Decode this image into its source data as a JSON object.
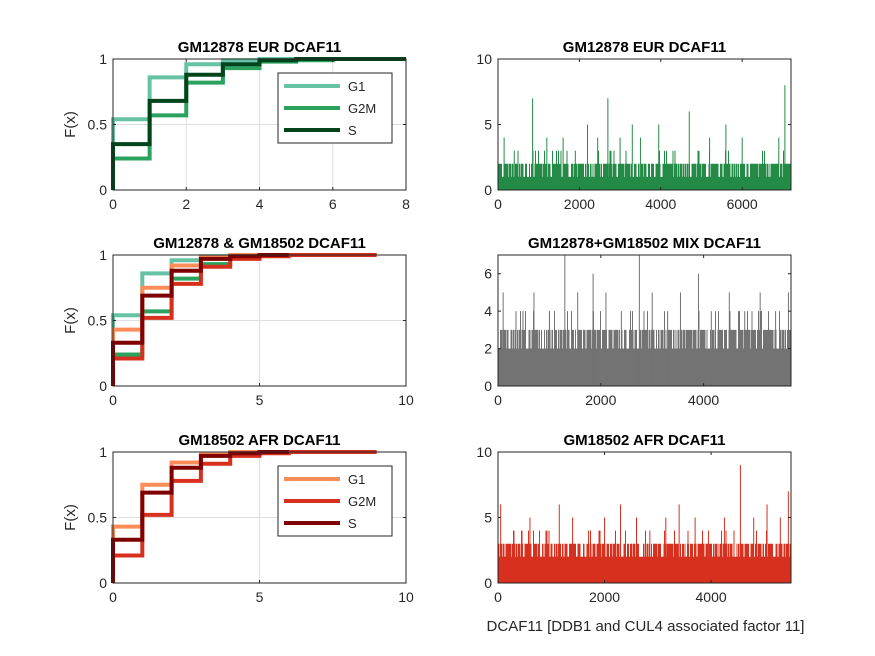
{
  "chart_data": [
    {
      "id": "p1",
      "type": "line",
      "subtype": "ecdf-stairs",
      "title": "GM12878 EUR DCAF11",
      "ylabel": "F(x)",
      "xlabel": "",
      "xlim": [
        0,
        8
      ],
      "ylim": [
        0,
        1
      ],
      "xticks": [
        "0",
        "2",
        "4",
        "6",
        "8"
      ],
      "yticks": [
        "0",
        "0.5",
        "1"
      ],
      "grid": true,
      "legend": "top-right",
      "series": [
        {
          "name": "G1",
          "color": "#66c2a4",
          "x": [
            0,
            1,
            2,
            3,
            4,
            5
          ],
          "y": [
            0.54,
            0.86,
            0.96,
            0.99,
            1.0,
            1.0
          ]
        },
        {
          "name": "G2M",
          "color": "#2ca25f",
          "x": [
            0,
            1,
            2,
            3,
            4,
            5,
            6,
            7
          ],
          "y": [
            0.24,
            0.57,
            0.82,
            0.93,
            0.98,
            0.99,
            1.0,
            1.0
          ]
        },
        {
          "name": "S",
          "color": "#00441b",
          "x": [
            0,
            1,
            2,
            3,
            4,
            5,
            6,
            8
          ],
          "y": [
            0.35,
            0.68,
            0.88,
            0.96,
            0.99,
            1.0,
            1.0,
            1.0
          ]
        }
      ]
    },
    {
      "id": "p2",
      "type": "bar",
      "subtype": "per-cell-counts",
      "title": "GM12878 EUR DCAF11",
      "xlabel": "",
      "ylabel": "",
      "xlim": [
        0,
        7200
      ],
      "ylim": [
        0,
        10
      ],
      "xticks": [
        "0",
        "2000",
        "4000",
        "6000"
      ],
      "yticks": [
        "0",
        "5",
        "10"
      ],
      "grid": false,
      "color": "#238b45",
      "n_cells": 7200,
      "base_max": 2,
      "peaks": [
        {
          "x": 150,
          "y": 4
        },
        {
          "x": 400,
          "y": 3
        },
        {
          "x": 850,
          "y": 7
        },
        {
          "x": 1200,
          "y": 4
        },
        {
          "x": 1600,
          "y": 4
        },
        {
          "x": 1900,
          "y": 3
        },
        {
          "x": 2200,
          "y": 5
        },
        {
          "x": 2450,
          "y": 4
        },
        {
          "x": 2700,
          "y": 7
        },
        {
          "x": 3000,
          "y": 4
        },
        {
          "x": 3300,
          "y": 5
        },
        {
          "x": 3500,
          "y": 4
        },
        {
          "x": 3950,
          "y": 5
        },
        {
          "x": 4300,
          "y": 3
        },
        {
          "x": 4700,
          "y": 6
        },
        {
          "x": 5200,
          "y": 4
        },
        {
          "x": 5600,
          "y": 5
        },
        {
          "x": 6000,
          "y": 4
        },
        {
          "x": 6500,
          "y": 3
        },
        {
          "x": 6900,
          "y": 4
        },
        {
          "x": 7050,
          "y": 8
        }
      ]
    },
    {
      "id": "p3",
      "type": "line",
      "subtype": "ecdf-stairs",
      "title": "GM12878 & GM18502 DCAF11",
      "ylabel": "F(x)",
      "xlabel": "",
      "xlim": [
        0,
        10
      ],
      "ylim": [
        0,
        1
      ],
      "xticks": [
        "0",
        "5",
        "10"
      ],
      "yticks": [
        "0",
        "0.5",
        "1"
      ],
      "grid": true,
      "legend": "none",
      "series": [
        {
          "name": "",
          "color": "#66c2a4",
          "x": [
            0,
            1,
            2,
            3,
            4
          ],
          "y": [
            0.54,
            0.86,
            0.96,
            0.99,
            1.0
          ]
        },
        {
          "name": "",
          "color": "#2ca25f",
          "x": [
            0,
            1,
            2,
            3,
            4,
            5
          ],
          "y": [
            0.24,
            0.57,
            0.82,
            0.93,
            0.98,
            1.0
          ]
        },
        {
          "name": "",
          "color": "#fc8d59",
          "x": [
            0,
            1,
            2,
            3,
            4,
            5
          ],
          "y": [
            0.43,
            0.75,
            0.92,
            0.98,
            1.0,
            1.0
          ]
        },
        {
          "name": "",
          "color": "#d7301f",
          "x": [
            0,
            1,
            2,
            3,
            4,
            5,
            6,
            9
          ],
          "y": [
            0.21,
            0.52,
            0.78,
            0.91,
            0.97,
            0.99,
            1.0,
            1.0
          ]
        },
        {
          "name": "",
          "color": "#7f0000",
          "x": [
            0,
            1,
            2,
            3,
            4,
            5,
            6
          ],
          "y": [
            0.33,
            0.69,
            0.88,
            0.97,
            0.99,
            1.0,
            1.0
          ]
        }
      ]
    },
    {
      "id": "p4",
      "type": "bar",
      "subtype": "per-cell-counts",
      "title": "GM12878+GM18502 MIX DCAF11",
      "xlabel": "",
      "ylabel": "",
      "xlim": [
        0,
        5700
      ],
      "ylim": [
        0,
        7
      ],
      "xticks": [
        "0",
        "2000",
        "4000"
      ],
      "yticks": [
        "0",
        "2",
        "4",
        "6"
      ],
      "grid": false,
      "color": "#737373",
      "n_cells": 5700,
      "base_max": 3,
      "peaks": [
        {
          "x": 100,
          "y": 5
        },
        {
          "x": 350,
          "y": 4
        },
        {
          "x": 700,
          "y": 5
        },
        {
          "x": 1000,
          "y": 4
        },
        {
          "x": 1300,
          "y": 7
        },
        {
          "x": 1550,
          "y": 5
        },
        {
          "x": 1850,
          "y": 6
        },
        {
          "x": 2100,
          "y": 5
        },
        {
          "x": 2400,
          "y": 4
        },
        {
          "x": 2750,
          "y": 7
        },
        {
          "x": 3000,
          "y": 5
        },
        {
          "x": 3300,
          "y": 4
        },
        {
          "x": 3550,
          "y": 5
        },
        {
          "x": 3900,
          "y": 6
        },
        {
          "x": 4150,
          "y": 4
        },
        {
          "x": 4500,
          "y": 5
        },
        {
          "x": 4800,
          "y": 4
        },
        {
          "x": 5100,
          "y": 5
        },
        {
          "x": 5400,
          "y": 4
        },
        {
          "x": 5650,
          "y": 5
        }
      ]
    },
    {
      "id": "p5",
      "type": "line",
      "subtype": "ecdf-stairs",
      "title": "GM18502 AFR DCAF11",
      "ylabel": "F(x)",
      "xlabel": "",
      "xlim": [
        0,
        10
      ],
      "ylim": [
        0,
        1
      ],
      "xticks": [
        "0",
        "5",
        "10"
      ],
      "yticks": [
        "0",
        "0.5",
        "1"
      ],
      "grid": true,
      "legend": "top-right",
      "series": [
        {
          "name": "G1",
          "color": "#fc8d59",
          "x": [
            0,
            1,
            2,
            3,
            4,
            5
          ],
          "y": [
            0.43,
            0.75,
            0.92,
            0.98,
            1.0,
            1.0
          ]
        },
        {
          "name": "G2M",
          "color": "#d7301f",
          "x": [
            0,
            1,
            2,
            3,
            4,
            5,
            6,
            9
          ],
          "y": [
            0.21,
            0.52,
            0.78,
            0.91,
            0.97,
            0.99,
            1.0,
            1.0
          ]
        },
        {
          "name": "S",
          "color": "#7f0000",
          "x": [
            0,
            1,
            2,
            3,
            4,
            5,
            6
          ],
          "y": [
            0.33,
            0.69,
            0.88,
            0.97,
            0.99,
            1.0,
            1.0
          ]
        }
      ]
    },
    {
      "id": "p6",
      "type": "bar",
      "subtype": "per-cell-counts",
      "title": "GM18502 AFR DCAF11",
      "xlabel": "DCAF11 [DDB1 and CUL4 associated factor 11]",
      "ylabel": "",
      "xlim": [
        0,
        5500
      ],
      "ylim": [
        0,
        10
      ],
      "xticks": [
        "0",
        "2000",
        "4000"
      ],
      "yticks": [
        "0",
        "5",
        "10"
      ],
      "grid": false,
      "color": "#d7301f",
      "n_cells": 5500,
      "base_max": 3,
      "peaks": [
        {
          "x": 50,
          "y": 6
        },
        {
          "x": 300,
          "y": 4
        },
        {
          "x": 600,
          "y": 5
        },
        {
          "x": 900,
          "y": 4
        },
        {
          "x": 1150,
          "y": 6
        },
        {
          "x": 1400,
          "y": 5
        },
        {
          "x": 1700,
          "y": 4
        },
        {
          "x": 2000,
          "y": 5
        },
        {
          "x": 2300,
          "y": 6
        },
        {
          "x": 2600,
          "y": 5
        },
        {
          "x": 2850,
          "y": 4
        },
        {
          "x": 3150,
          "y": 5
        },
        {
          "x": 3400,
          "y": 6
        },
        {
          "x": 3700,
          "y": 5
        },
        {
          "x": 3950,
          "y": 4
        },
        {
          "x": 4250,
          "y": 5
        },
        {
          "x": 4550,
          "y": 9
        },
        {
          "x": 4800,
          "y": 5
        },
        {
          "x": 5050,
          "y": 6
        },
        {
          "x": 5300,
          "y": 5
        },
        {
          "x": 5450,
          "y": 7
        }
      ]
    }
  ]
}
